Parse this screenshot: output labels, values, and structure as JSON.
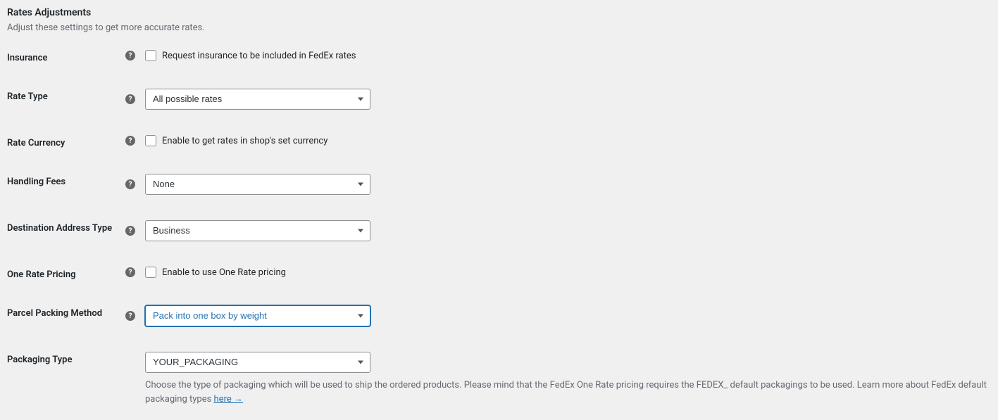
{
  "section": {
    "title": "Rates Adjustments",
    "description": "Adjust these settings to get more accurate rates."
  },
  "fields": {
    "insurance": {
      "label": "Insurance",
      "checkbox_label": "Request insurance to be included in FedEx rates"
    },
    "rate_type": {
      "label": "Rate Type",
      "selected": "All possible rates"
    },
    "rate_currency": {
      "label": "Rate Currency",
      "checkbox_label": "Enable to get rates in shop's set currency"
    },
    "handling_fees": {
      "label": "Handling Fees",
      "selected": "None"
    },
    "destination_address_type": {
      "label": "Destination Address Type",
      "selected": "Business"
    },
    "one_rate_pricing": {
      "label": "One Rate Pricing",
      "checkbox_label": "Enable to use One Rate pricing"
    },
    "parcel_packing_method": {
      "label": "Parcel Packing Method",
      "selected": "Pack into one box by weight"
    },
    "packaging_type": {
      "label": "Packaging Type",
      "selected": "YOUR_PACKAGING",
      "help_text_1": "Choose the type of packaging which will be used to ship the ordered products. Please mind that the FedEx One Rate pricing requires the FEDEX_ default packagings to be used. Learn more about FedEx default packaging types ",
      "help_link_text": "here →"
    }
  }
}
